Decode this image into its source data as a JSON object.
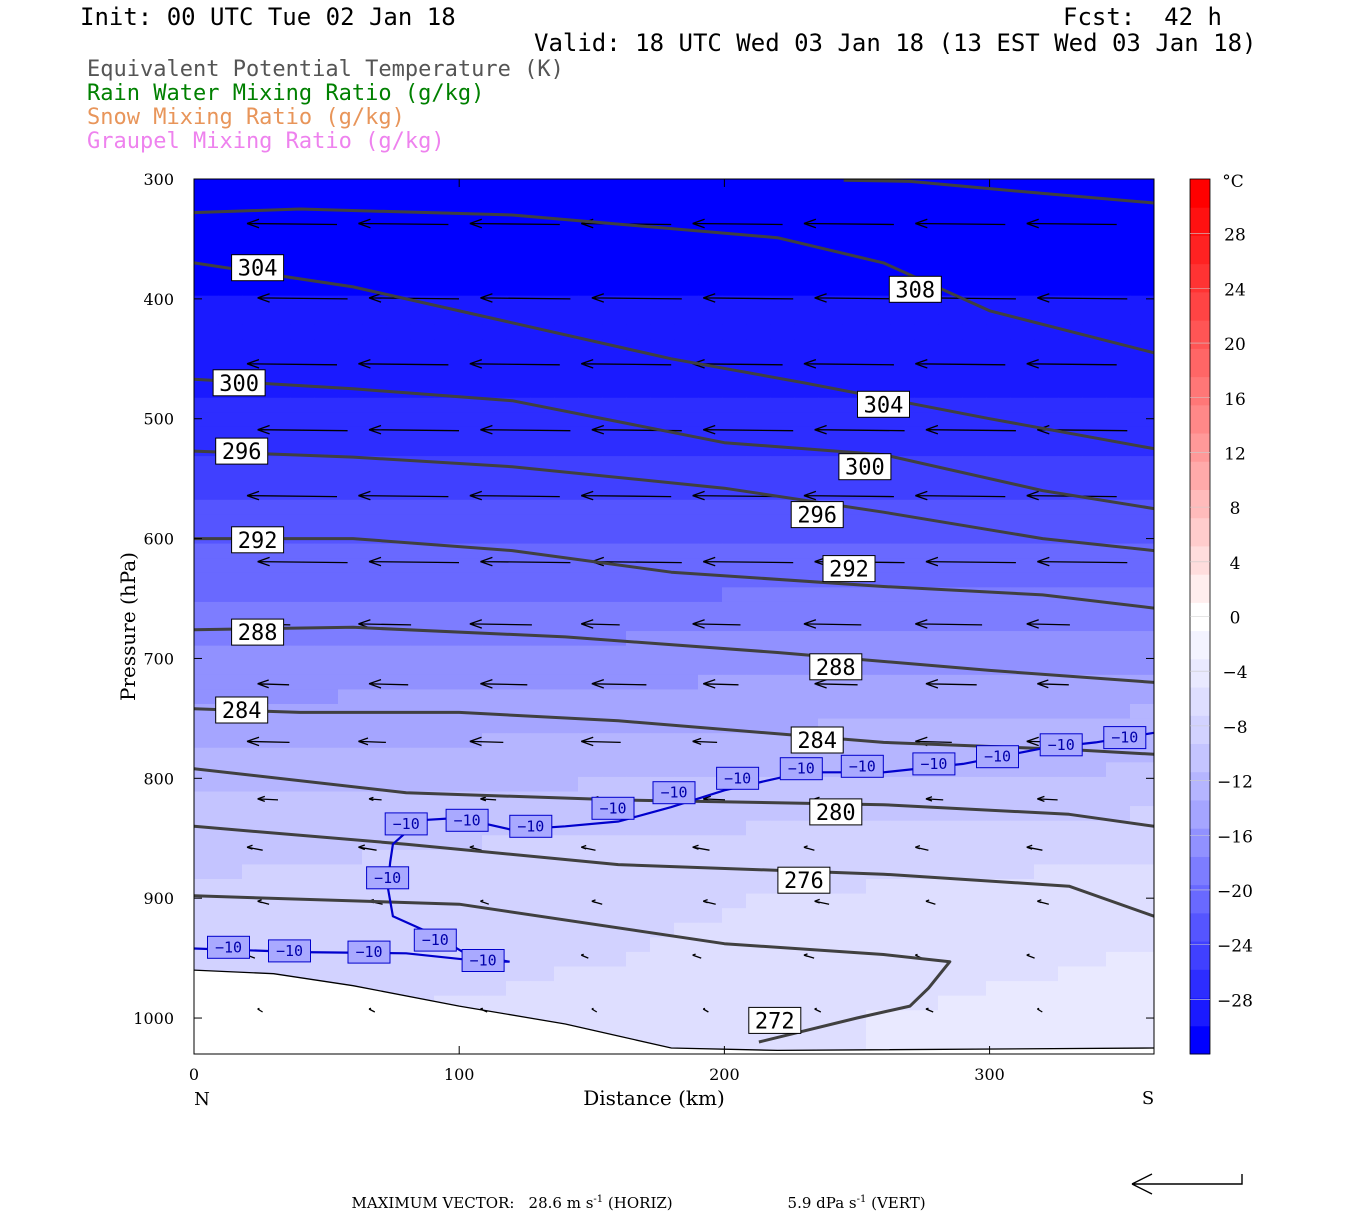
{
  "header": {
    "init": "Init: 00 UTC Tue 02 Jan 18",
    "fcst": "Fcst:  42 h",
    "valid": "Valid: 18 UTC Wed 03 Jan 18 (13 EST Wed 03 Jan 18)"
  },
  "legend": [
    {
      "text": "Equivalent Potential Temperature (K)",
      "color": "#555555"
    },
    {
      "text": "Rain Water Mixing Ratio (g/kg)",
      "color": "#008000"
    },
    {
      "text": "Snow Mixing Ratio (g/kg)",
      "color": "#e8955a"
    },
    {
      "text": "Graupel Mixing Ratio (g/kg)",
      "color": "#ee82ee"
    }
  ],
  "chart_data": {
    "type": "heatmap",
    "xlabel": "Distance (km)",
    "ylabel": "Pressure (hPa)",
    "xlim": [
      0,
      362
    ],
    "ylim": [
      1030,
      300
    ],
    "x_ticks": [
      0,
      100,
      200,
      300
    ],
    "y_ticks": [
      300,
      400,
      500,
      600,
      700,
      800,
      900,
      1000
    ],
    "x_end_labels": {
      "left": "N",
      "right": "S"
    },
    "colorbar": {
      "unit": "°C",
      "tick_labels": [
        "28",
        "24",
        "20",
        "16",
        "12",
        "8",
        "4",
        "0",
        "−4",
        "−8",
        "−12",
        "−16",
        "−20",
        "−24",
        "−28"
      ],
      "tick_values": [
        28,
        24,
        20,
        16,
        12,
        8,
        4,
        0,
        -4,
        -8,
        -12,
        -16,
        -20,
        -24,
        -28
      ],
      "range": [
        -32,
        32
      ],
      "colors_bottom_to_top": [
        "#0000ff",
        "#1a1aff",
        "#2d2dff",
        "#4040ff",
        "#5555ff",
        "#6969ff",
        "#7d7dff",
        "#9191ff",
        "#a5a5ff",
        "#b5b5ff",
        "#c4c4ff",
        "#d2d2ff",
        "#dedeff",
        "#e9e9ff",
        "#f3f3ff",
        "#ffffff",
        "#ffeeee",
        "#ffdddd",
        "#ffcccc",
        "#ffbbbb",
        "#ffaaaa",
        "#ff9999",
        "#ff8888",
        "#ff7777",
        "#ff6666",
        "#ff5555",
        "#ff4444",
        "#ff3333",
        "#ff2222",
        "#ff1111",
        "#ff0000"
      ]
    },
    "temperature_field": {
      "pressure_levels": [
        300,
        350,
        400,
        450,
        500,
        550,
        600,
        650,
        700,
        750,
        800,
        850,
        900,
        950,
        1000,
        1030
      ],
      "t_north": [
        -31,
        -31,
        -30,
        -29,
        -27,
        -25,
        -22,
        -20,
        -17,
        -15,
        -12,
        -10,
        -9,
        -9,
        -8,
        -8
      ],
      "t_south": [
        -31,
        -30,
        -30,
        -29,
        -27,
        -25,
        -22,
        -19,
        -16,
        -13,
        -11,
        -8,
        -6,
        -5,
        -4,
        -4
      ]
    },
    "theta_e_contours": [
      {
        "level": 272,
        "points": [
          [
            213,
            1020
          ],
          [
            250,
            1000
          ],
          [
            270,
            990
          ],
          [
            277,
            975
          ],
          [
            285,
            953
          ],
          [
            260,
            947
          ],
          [
            200,
            938
          ],
          [
            100,
            905
          ],
          [
            0,
            898
          ]
        ]
      },
      {
        "level": 276,
        "points": [
          [
            0,
            840
          ],
          [
            80,
            855
          ],
          [
            160,
            872
          ],
          [
            260,
            880
          ],
          [
            330,
            890
          ],
          [
            362,
            915
          ]
        ]
      },
      {
        "level": 280,
        "points": [
          [
            0,
            792
          ],
          [
            80,
            812
          ],
          [
            160,
            818
          ],
          [
            260,
            822
          ],
          [
            330,
            830
          ],
          [
            362,
            840
          ]
        ]
      },
      {
        "level": 284,
        "points": [
          [
            0,
            742
          ],
          [
            40,
            745
          ],
          [
            100,
            745
          ],
          [
            160,
            752
          ],
          [
            260,
            770
          ],
          [
            330,
            776
          ],
          [
            362,
            780
          ]
        ]
      },
      {
        "level": 288,
        "points": [
          [
            0,
            676
          ],
          [
            60,
            674
          ],
          [
            140,
            682
          ],
          [
            220,
            695
          ],
          [
            300,
            710
          ],
          [
            362,
            720
          ]
        ]
      },
      {
        "level": 292,
        "points": [
          [
            0,
            600
          ],
          [
            60,
            600
          ],
          [
            120,
            610
          ],
          [
            180,
            628
          ],
          [
            260,
            640
          ],
          [
            320,
            647
          ],
          [
            362,
            658
          ]
        ]
      },
      {
        "level": 296,
        "points": [
          [
            0,
            527
          ],
          [
            60,
            532
          ],
          [
            120,
            540
          ],
          [
            200,
            558
          ],
          [
            260,
            578
          ],
          [
            320,
            600
          ],
          [
            362,
            610
          ]
        ]
      },
      {
        "level": 300,
        "points": [
          [
            0,
            467
          ],
          [
            60,
            475
          ],
          [
            120,
            485
          ],
          [
            200,
            520
          ],
          [
            260,
            530
          ],
          [
            320,
            560
          ],
          [
            362,
            575
          ]
        ]
      },
      {
        "level": 304,
        "points": [
          [
            0,
            370
          ],
          [
            60,
            390
          ],
          [
            120,
            420
          ],
          [
            180,
            450
          ],
          [
            230,
            470
          ],
          [
            300,
            500
          ],
          [
            362,
            525
          ]
        ]
      },
      {
        "level": 308,
        "points": [
          [
            0,
            328
          ],
          [
            40,
            325
          ],
          [
            120,
            330
          ],
          [
            220,
            349
          ],
          [
            260,
            370
          ],
          [
            300,
            410
          ],
          [
            362,
            445
          ]
        ]
      },
      {
        "level": 312,
        "points": [
          [
            245,
            301
          ],
          [
            270,
            302
          ],
          [
            320,
            312
          ],
          [
            362,
            320
          ]
        ]
      }
    ],
    "theta_e_labels": [
      {
        "text": "304",
        "x": 24,
        "p": 374
      },
      {
        "text": "308",
        "x": 272,
        "p": 392
      },
      {
        "text": "300",
        "x": 17,
        "p": 470
      },
      {
        "text": "304",
        "x": 260,
        "p": 488
      },
      {
        "text": "296",
        "x": 18,
        "p": 527
      },
      {
        "text": "300",
        "x": 253,
        "p": 540
      },
      {
        "text": "292",
        "x": 24,
        "p": 601
      },
      {
        "text": "296",
        "x": 235,
        "p": 580
      },
      {
        "text": "288",
        "x": 24,
        "p": 678
      },
      {
        "text": "292",
        "x": 247,
        "p": 625
      },
      {
        "text": "284",
        "x": 18,
        "p": 743
      },
      {
        "text": "288",
        "x": 242,
        "p": 707
      },
      {
        "text": "284",
        "x": 235,
        "p": 768
      },
      {
        "text": "280",
        "x": 242,
        "p": 828
      },
      {
        "text": "276",
        "x": 230,
        "p": 885
      },
      {
        "text": "272",
        "x": 219,
        "p": 1002
      }
    ],
    "isotherm_minus10": {
      "label": "−10",
      "points": [
        [
          0,
          942
        ],
        [
          40,
          945
        ],
        [
          80,
          946
        ],
        [
          110,
          953
        ],
        [
          119,
          953
        ],
        [
          103,
          947
        ],
        [
          90,
          930
        ],
        [
          75,
          915
        ],
        [
          73,
          890
        ],
        [
          74,
          870
        ],
        [
          75,
          855
        ],
        [
          85,
          835
        ],
        [
          100,
          833
        ],
        [
          120,
          843
        ],
        [
          140,
          840
        ],
        [
          160,
          836
        ],
        [
          180,
          824
        ],
        [
          200,
          810
        ],
        [
          230,
          795
        ],
        [
          260,
          795
        ],
        [
          290,
          788
        ],
        [
          320,
          775
        ],
        [
          340,
          770
        ],
        [
          362,
          762
        ]
      ],
      "label_positions": [
        [
          13,
          941
        ],
        [
          36,
          944
        ],
        [
          66,
          945
        ],
        [
          109,
          952
        ],
        [
          91,
          935
        ],
        [
          73,
          883
        ],
        [
          80,
          838
        ],
        [
          103,
          835
        ],
        [
          127,
          840
        ],
        [
          158,
          825
        ],
        [
          181,
          812
        ],
        [
          205,
          800
        ],
        [
          229,
          792
        ],
        [
          252,
          790
        ],
        [
          279,
          788
        ],
        [
          303,
          782
        ],
        [
          327,
          772
        ],
        [
          351,
          766
        ]
      ]
    },
    "wind_arrow_scale": "28.6 m s-1 horizontal = long arrow",
    "ground_pressure": [
      [
        0,
        960
      ],
      [
        30,
        963
      ],
      [
        60,
        973
      ],
      [
        100,
        990
      ],
      [
        140,
        1005
      ],
      [
        160,
        1015
      ],
      [
        180,
        1025
      ],
      [
        220,
        1027
      ],
      [
        362,
        1025
      ]
    ]
  },
  "footer": {
    "max_vector_label": "MAXIMUM VECTOR:",
    "horiz": "28.6 m s",
    "horiz_unit": " (HORIZ)",
    "vert": "5.9 dPa s",
    "vert_unit": " (VERT)",
    "exponent": "-1"
  }
}
